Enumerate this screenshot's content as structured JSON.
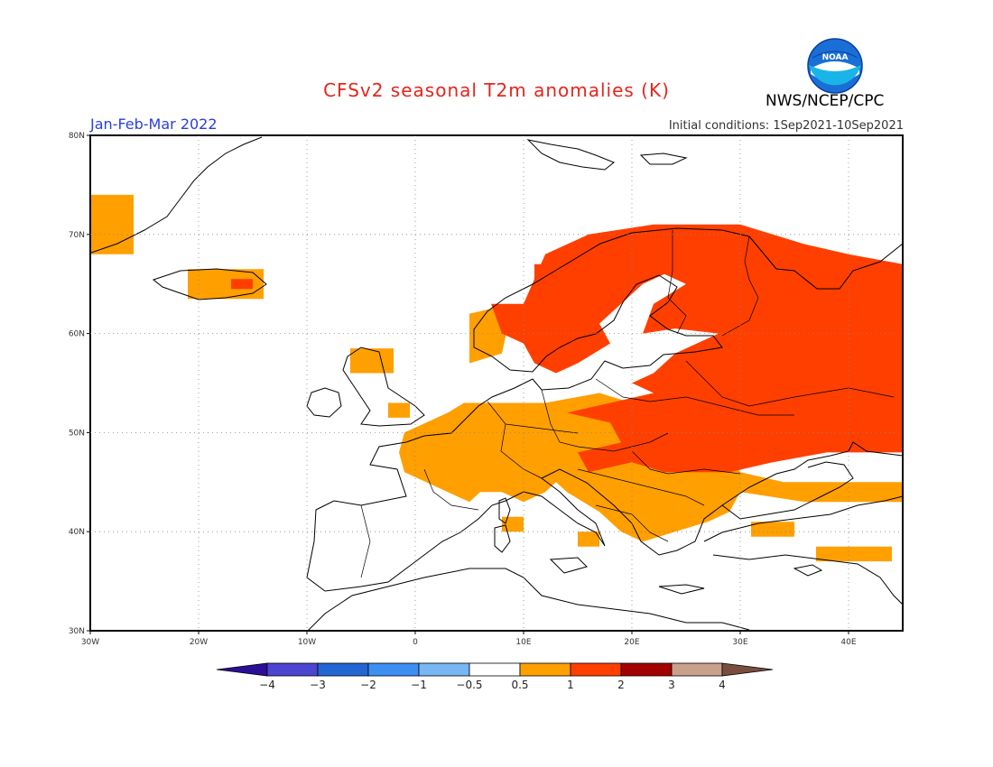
{
  "header": {
    "title": "CFSv2 seasonal T2m anomalies (K)",
    "org": "NWS/NCEP/CPC",
    "period": "Jan-Feb-Mar 2022",
    "initial_conditions": "Initial conditions: 1Sep2021-10Sep2021",
    "logo_text": "NOAA"
  },
  "map": {
    "lon_range": [
      -30,
      45
    ],
    "lat_range": [
      30,
      80
    ],
    "grid": true,
    "x_ticks": [
      {
        "value": -30,
        "label": "30W"
      },
      {
        "value": -20,
        "label": "20W"
      },
      {
        "value": -10,
        "label": "10W"
      },
      {
        "value": 0,
        "label": "0"
      },
      {
        "value": 10,
        "label": "10E"
      },
      {
        "value": 20,
        "label": "20E"
      },
      {
        "value": 30,
        "label": "30E"
      },
      {
        "value": 40,
        "label": "40E"
      }
    ],
    "y_ticks": [
      {
        "value": 30,
        "label": "30N"
      },
      {
        "value": 40,
        "label": "40N"
      },
      {
        "value": 50,
        "label": "50N"
      },
      {
        "value": 60,
        "label": "60N"
      },
      {
        "value": 70,
        "label": "70N"
      },
      {
        "value": 80,
        "label": "80N"
      }
    ],
    "anomaly_regions": [
      {
        "class": "0.5-1",
        "color": "#ff9f00",
        "polygon": [
          [
            -30,
            74
          ],
          [
            -26,
            74
          ],
          [
            -26,
            68
          ],
          [
            -30,
            68
          ]
        ]
      },
      {
        "class": "0.5-1",
        "color": "#ff9f00",
        "polygon": [
          [
            -21,
            66.5
          ],
          [
            -14,
            66.5
          ],
          [
            -14,
            63.5
          ],
          [
            -21,
            63.5
          ]
        ]
      },
      {
        "class": "1-2",
        "color": "#ff3f00",
        "polygon": [
          [
            -17,
            65.5
          ],
          [
            -15,
            65.5
          ],
          [
            -15,
            64.5
          ],
          [
            -17,
            64.5
          ]
        ]
      },
      {
        "class": "0.5-1",
        "color": "#ff9f00",
        "polygon": [
          [
            -6,
            58.5
          ],
          [
            -2,
            58.5
          ],
          [
            -2,
            56
          ],
          [
            -6,
            56
          ]
        ]
      },
      {
        "class": "0.5-1",
        "color": "#ff9f00",
        "polygon": [
          [
            -2.5,
            53
          ],
          [
            -0.5,
            53
          ],
          [
            -0.5,
            51.5
          ],
          [
            -2.5,
            51.5
          ]
        ]
      },
      {
        "class": "0.5-1",
        "color": "#ff9f00",
        "polygon": [
          [
            5,
            62
          ],
          [
            9,
            63
          ],
          [
            8,
            58
          ],
          [
            5,
            57
          ]
        ]
      },
      {
        "class": "0.5-1",
        "color": "#ff9f00",
        "polygon": [
          [
            4.5,
            53
          ],
          [
            12,
            53
          ],
          [
            17,
            54
          ],
          [
            20,
            53
          ],
          [
            22,
            52
          ],
          [
            29,
            48
          ],
          [
            30,
            46
          ],
          [
            34,
            45
          ],
          [
            38,
            45
          ],
          [
            41,
            45
          ],
          [
            45,
            45
          ],
          [
            45,
            43
          ],
          [
            41,
            43
          ],
          [
            36,
            43
          ],
          [
            30,
            44
          ],
          [
            29,
            42
          ],
          [
            27,
            41
          ],
          [
            24,
            40
          ],
          [
            21,
            39
          ],
          [
            19,
            40
          ],
          [
            18,
            41
          ],
          [
            17,
            42
          ],
          [
            14,
            44
          ],
          [
            13,
            45
          ],
          [
            12,
            44
          ],
          [
            10,
            43
          ],
          [
            8,
            44
          ],
          [
            6,
            44
          ],
          [
            5,
            43
          ],
          [
            3,
            44
          ],
          [
            1,
            45
          ],
          [
            -1,
            46
          ],
          [
            -1.5,
            48
          ],
          [
            -1,
            50
          ],
          [
            1,
            51
          ],
          [
            3,
            52
          ]
        ]
      },
      {
        "class": "0.5-1",
        "color": "#ff9f00",
        "polygon": [
          [
            8,
            41.5
          ],
          [
            10,
            41.5
          ],
          [
            10,
            40
          ],
          [
            8,
            40
          ]
        ]
      },
      {
        "class": "0.5-1",
        "color": "#ff9f00",
        "polygon": [
          [
            15,
            40
          ],
          [
            17,
            40
          ],
          [
            17,
            38.5
          ],
          [
            15,
            38.5
          ]
        ]
      },
      {
        "class": "0.5-1",
        "color": "#ff9f00",
        "polygon": [
          [
            31,
            41
          ],
          [
            35,
            41
          ],
          [
            35,
            39.5
          ],
          [
            31,
            39.5
          ]
        ]
      },
      {
        "class": "0.5-1",
        "color": "#ff9f00",
        "polygon": [
          [
            37,
            38.5
          ],
          [
            44,
            38.5
          ],
          [
            44,
            37
          ],
          [
            37,
            37
          ]
        ]
      },
      {
        "class": "1-2",
        "color": "#ff3f00",
        "polygon": [
          [
            7,
            63
          ],
          [
            10,
            63
          ],
          [
            12,
            68
          ],
          [
            16,
            70
          ],
          [
            22,
            71
          ],
          [
            30,
            71
          ],
          [
            33,
            70
          ],
          [
            36,
            69
          ],
          [
            40,
            68
          ],
          [
            45,
            67
          ],
          [
            45,
            48
          ],
          [
            38,
            48
          ],
          [
            33,
            47
          ],
          [
            29,
            46
          ],
          [
            27,
            46
          ],
          [
            23,
            46
          ],
          [
            20,
            47
          ],
          [
            16,
            46
          ],
          [
            15,
            48
          ],
          [
            19,
            49
          ],
          [
            18,
            51
          ],
          [
            14,
            52
          ],
          [
            18,
            53
          ],
          [
            22,
            54
          ],
          [
            20,
            55
          ],
          [
            22,
            56
          ],
          [
            24,
            58
          ],
          [
            28,
            60
          ],
          [
            24,
            60.5
          ],
          [
            21,
            60
          ],
          [
            22,
            63
          ],
          [
            25,
            65
          ],
          [
            23,
            66
          ],
          [
            21,
            65
          ],
          [
            19,
            63
          ],
          [
            17,
            61
          ],
          [
            18,
            59
          ],
          [
            15,
            57
          ],
          [
            13,
            56
          ],
          [
            11,
            57
          ],
          [
            10,
            59
          ],
          [
            8,
            60
          ]
        ]
      },
      {
        "class": "1-2",
        "color": "#ff3f00",
        "polygon": [
          [
            11,
            65
          ],
          [
            14,
            65
          ],
          [
            14,
            67
          ],
          [
            11,
            67
          ]
        ]
      }
    ]
  },
  "colorbar": {
    "colors": [
      "#2b0f99",
      "#4b45d2",
      "#2266d4",
      "#3d8ff2",
      "#78b6f4",
      "#ffffff",
      "#ff9f00",
      "#ff3f00",
      "#a30000",
      "#c9a08c",
      "#7a4e3e"
    ],
    "labels": [
      "−4",
      "−3",
      "−2",
      "−1",
      "−0.5",
      "0.5",
      "1",
      "2",
      "3",
      "4"
    ]
  }
}
